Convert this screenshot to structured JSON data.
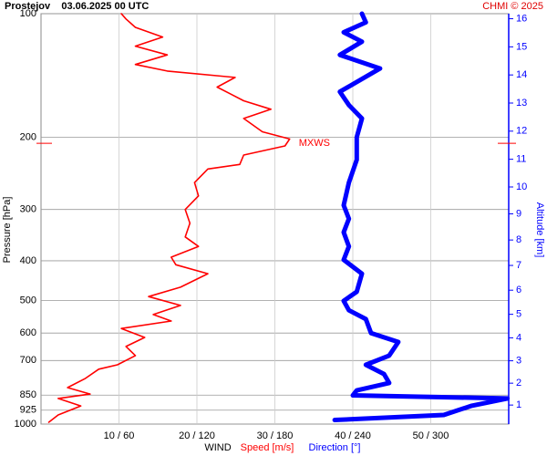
{
  "chart_data": {
    "type": "line",
    "title": "Prostejov    03.06.2025 00 UTC",
    "credit": "CHMI © 2025",
    "ylabel": "Pressure [hPa]",
    "y2label": "Altitude [km]",
    "xlabel": "WIND",
    "ylog": true,
    "grid": true,
    "ylim": [
      1000,
      100
    ],
    "yticks": [
      100,
      200,
      300,
      400,
      500,
      600,
      700,
      850,
      925,
      1000
    ],
    "y2ticks": [
      1,
      2,
      3,
      4,
      5,
      6,
      7,
      8,
      9,
      10,
      11,
      12,
      13,
      14,
      15,
      16
    ],
    "y2color": "#0000ff",
    "xlim": [
      0,
      60
    ],
    "x2lim": [
      0,
      360
    ],
    "xticks": [
      {
        "value": 10,
        "label": "10 / 60"
      },
      {
        "value": 20,
        "label": "20 / 120"
      },
      {
        "value": 30,
        "label": "30 / 180"
      },
      {
        "value": 40,
        "label": "40 / 240"
      },
      {
        "value": 50,
        "label": "50 / 300"
      }
    ],
    "annotation": {
      "label": "MXWS",
      "pressure": 207,
      "color": "#ff0000"
    },
    "series": [
      {
        "name": "Speed [m/s]",
        "color": "#ff0000",
        "axis": "x",
        "pressure": [
          990,
          950,
          903,
          866,
          845,
          815,
          774,
          735,
          717,
          681,
          647,
          615,
          585,
          561,
          541,
          514,
          489,
          464,
          430,
          409,
          392,
          369,
          350,
          324,
          300,
          278,
          258,
          239,
          233,
          221,
          210,
          202,
          194,
          180,
          171,
          163,
          151,
          143,
          138,
          133,
          126,
          120,
          114,
          108,
          103,
          100
        ],
        "values": [
          1.0,
          2.2,
          5.1,
          2.2,
          6.3,
          3.4,
          5.7,
          7.4,
          9.8,
          12.1,
          10.9,
          13.3,
          10.3,
          16.7,
          14.4,
          17.9,
          13.8,
          17.9,
          21.4,
          17.3,
          16.7,
          20.2,
          18.5,
          19.1,
          18.5,
          20.2,
          19.7,
          21.4,
          25.5,
          26.0,
          31.3,
          31.9,
          28.4,
          26.0,
          29.5,
          26.0,
          22.6,
          24.9,
          16.2,
          12.1,
          16.2,
          12.1,
          15.6,
          12.1,
          10.9,
          10.3
        ]
      },
      {
        "name": "Direction [°]",
        "color": "#0000ff",
        "axis": "x2",
        "pressure": [
          977,
          950,
          903,
          866,
          851,
          828,
          794,
          755,
          717,
          681,
          631,
          600,
          555,
          528,
          501,
          476,
          430,
          398,
          369,
          341,
          316,
          293,
          258,
          227,
          200,
          180,
          167,
          155,
          136,
          126,
          117,
          111,
          105,
          100
        ],
        "values": [
          226,
          310,
          331,
          359,
          240,
          243,
          268,
          264,
          250,
          268,
          275,
          254,
          250,
          237,
          233,
          243,
          247,
          233,
          237,
          233,
          237,
          233,
          237,
          243,
          243,
          247,
          237,
          230,
          261,
          230,
          247,
          233,
          250,
          247
        ]
      }
    ]
  }
}
